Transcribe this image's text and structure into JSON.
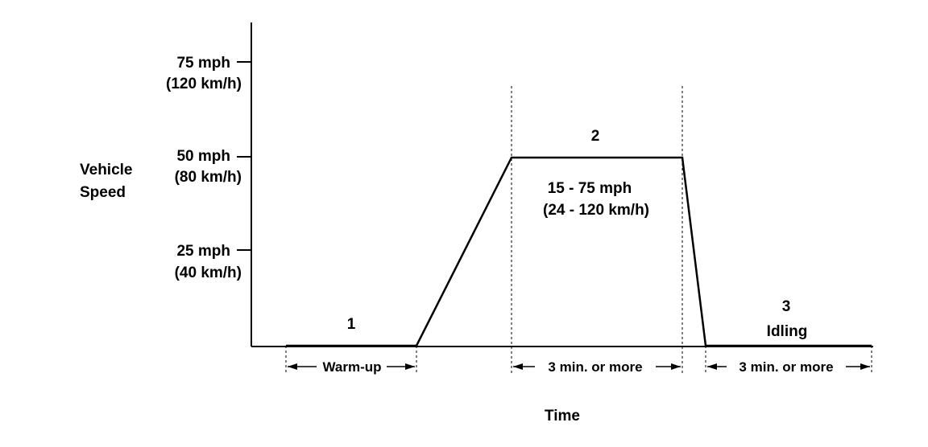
{
  "y_axis": {
    "label_line1": "Vehicle",
    "label_line2": "Speed",
    "ticks": [
      {
        "mph": "75 mph",
        "kmh": "(120 km/h)"
      },
      {
        "mph": "50 mph",
        "kmh": "(80 km/h)"
      },
      {
        "mph": "25 mph",
        "kmh": "(40 km/h)"
      }
    ]
  },
  "x_axis": {
    "label": "Time"
  },
  "phases": {
    "p1": {
      "number": "1",
      "duration": "Warm-up"
    },
    "p2": {
      "number": "2",
      "range_mph": "15 - 75 mph",
      "range_kmh": "(24 - 120 km/h)",
      "duration": "3 min. or  more"
    },
    "p3": {
      "number": "3",
      "name": "Idling",
      "duration": "3 min. or  more"
    }
  }
}
